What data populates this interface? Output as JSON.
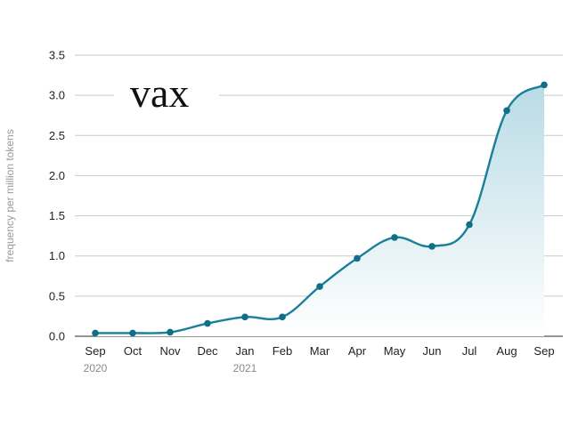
{
  "chart_data": {
    "type": "area",
    "title": "vax",
    "ylabel": "frequency per million tokens",
    "ylim": [
      0,
      3.5
    ],
    "yticks": [
      "0.0",
      "0.5",
      "1.0",
      "1.5",
      "2.0",
      "2.5",
      "3.0",
      "3.5"
    ],
    "categories": [
      "Sep",
      "Oct",
      "Nov",
      "Dec",
      "Jan",
      "Feb",
      "Mar",
      "Apr",
      "May",
      "Jun",
      "Jul",
      "Aug",
      "Sep"
    ],
    "year_labels": [
      {
        "index": 0,
        "label": "2020"
      },
      {
        "index": 4,
        "label": "2021"
      }
    ],
    "series": [
      {
        "values": [
          0.04,
          0.04,
          0.05,
          0.16,
          0.24,
          0.24,
          0.62,
          0.97,
          1.23,
          1.12,
          1.39,
          2.81,
          3.13
        ]
      }
    ],
    "grid": true,
    "colors": {
      "line": "#1a7f98",
      "marker": "#0f6f88",
      "fill_top": "#b9dbe5",
      "fill_bottom": "#ffffff",
      "grid": "#c9c9c9",
      "axis": "#555555"
    }
  }
}
